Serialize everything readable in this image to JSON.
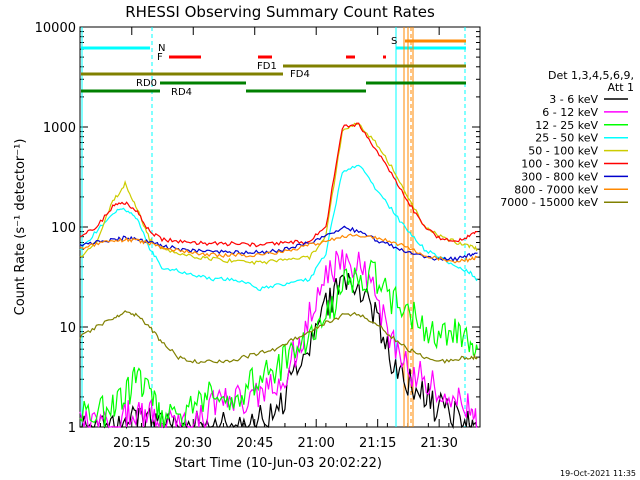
{
  "chart_data": {
    "type": "line",
    "title": "RHESSI Observing Summary Count Rates",
    "xlabel": "Start Time (10-Jun-03 20:02:22)",
    "ylabel": "Count Rate (s⁻¹ detector⁻¹)",
    "y_scale": "log",
    "ylim": [
      1,
      10000
    ],
    "xlim_minutes_since_start": [
      0,
      97.6
    ],
    "x_ticks": [
      "20:15",
      "20:30",
      "20:45",
      "21:00",
      "21:15",
      "21:30"
    ],
    "y_ticks": [
      "1",
      "10",
      "100",
      "1000",
      "10000"
    ],
    "legend": {
      "placement": "right",
      "header": [
        "Det 1,3,4,5,6,9,",
        "Att 1"
      ]
    },
    "series": [
      {
        "name": "3 - 6 keV",
        "color": "#000000",
        "values": [
          1,
          1,
          1,
          1,
          1.2,
          1.1,
          1,
          1,
          1,
          1,
          1,
          1,
          1.2,
          1.5,
          3,
          6,
          15,
          28,
          25,
          12,
          5,
          3,
          2,
          1.5,
          1.2,
          1,
          1
        ]
      },
      {
        "name": "6 - 12 keV",
        "color": "#ff00ff",
        "values": [
          1,
          1,
          1,
          1.2,
          1.5,
          1.3,
          1,
          1,
          1,
          1.5,
          2,
          2,
          2,
          2.5,
          5,
          12,
          30,
          45,
          40,
          20,
          8,
          4,
          3,
          2.5,
          2,
          1.5,
          1
        ]
      },
      {
        "name": "12 - 25 keV",
        "color": "#00ff00",
        "values": [
          1.2,
          1.3,
          1.5,
          2,
          3,
          2,
          1.3,
          1.2,
          1.5,
          2,
          2,
          2.5,
          3,
          4,
          5,
          7,
          12,
          25,
          35,
          30,
          20,
          15,
          10,
          8,
          9,
          8,
          6
        ]
      },
      {
        "name": "25 - 50 keV",
        "color": "#00ffff",
        "values": [
          60,
          90,
          140,
          150,
          120,
          60,
          40,
          36,
          33,
          30,
          30,
          28,
          24,
          26,
          28,
          30,
          55,
          350,
          420,
          250,
          150,
          90,
          60,
          50,
          40,
          35,
          30
        ]
      },
      {
        "name": "50 - 100 keV",
        "color": "#cccc00",
        "values": [
          50,
          70,
          180,
          270,
          150,
          75,
          60,
          54,
          50,
          48,
          46,
          45,
          44,
          46,
          48,
          50,
          80,
          900,
          1100,
          700,
          400,
          200,
          100,
          80,
          70,
          65,
          60
        ]
      },
      {
        "name": "100 - 300 keV",
        "color": "#ff0000",
        "values": [
          80,
          100,
          160,
          175,
          140,
          90,
          75,
          72,
          70,
          68,
          68,
          68,
          66,
          68,
          70,
          72,
          100,
          1000,
          1050,
          600,
          350,
          180,
          100,
          75,
          72,
          80,
          90
        ]
      },
      {
        "name": "300 - 800 keV",
        "color": "#0000cc",
        "values": [
          65,
          70,
          74,
          78,
          76,
          70,
          65,
          60,
          58,
          56,
          56,
          55,
          56,
          58,
          62,
          70,
          80,
          100,
          90,
          75,
          65,
          55,
          50,
          48,
          48,
          52,
          55
        ]
      },
      {
        "name": "800 - 7000 keV",
        "color": "#ff8800",
        "values": [
          62,
          68,
          72,
          75,
          74,
          68,
          62,
          58,
          55,
          53,
          52,
          52,
          53,
          55,
          60,
          66,
          72,
          80,
          82,
          78,
          72,
          62,
          52,
          48,
          45,
          47,
          50
        ]
      },
      {
        "name": "7000 - 15000 keV",
        "color": "#808000",
        "values": [
          8,
          10,
          12,
          14,
          13,
          10,
          7,
          5,
          4.5,
          4.5,
          4.5,
          5,
          5.5,
          6,
          7.5,
          9,
          11,
          13,
          13.5,
          11,
          8,
          6,
          5,
          4.5,
          4.8,
          5,
          5
        ]
      }
    ],
    "x_minutes": [
      0,
      4,
      8,
      11,
      14,
      17,
      20,
      24,
      28,
      32,
      36,
      40,
      44,
      48,
      52,
      56,
      60,
      64,
      68,
      72,
      76,
      80,
      84,
      88,
      92,
      95,
      97
    ],
    "annotations": [
      {
        "label": "N",
        "color": "#00ffff"
      },
      {
        "label": "F",
        "color": "#ff0000"
      },
      {
        "label": "S",
        "color": "#ff8800"
      },
      {
        "label": "FD1",
        "color": "#808000"
      },
      {
        "label": "FD4",
        "color": "#808000"
      },
      {
        "label": "RD0",
        "color": "#008000"
      },
      {
        "label": "RD4",
        "color": "#008000"
      }
    ],
    "footer_timestamp": "19-Oct-2021 11:35"
  }
}
